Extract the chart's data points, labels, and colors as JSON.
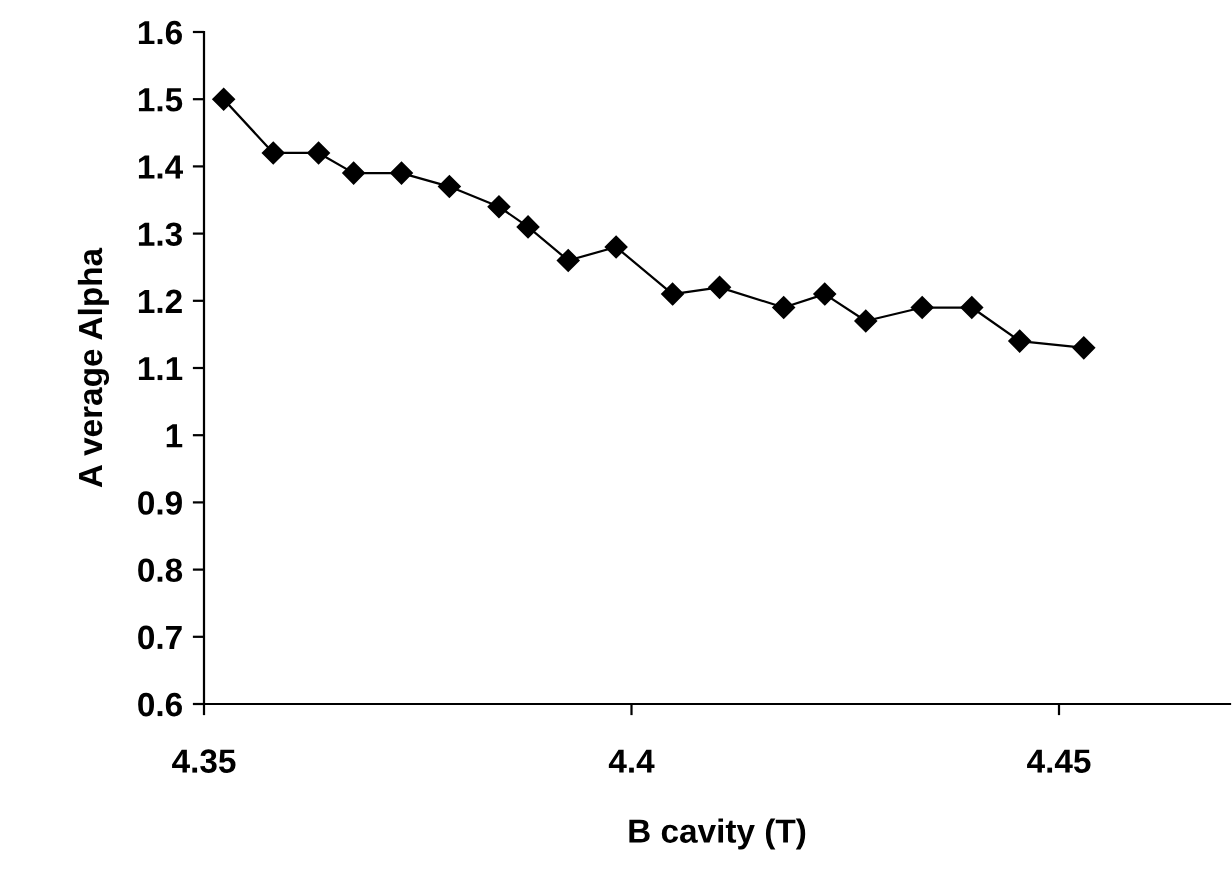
{
  "chart_data": {
    "type": "line",
    "xlabel": "B cavity (T)",
    "ylabel": "A verage Alpha",
    "x": [
      4.3523,
      4.3581,
      4.3634,
      4.3675,
      4.3731,
      4.3787,
      4.3845,
      4.3879,
      4.3926,
      4.3982,
      4.4048,
      4.4103,
      4.4178,
      4.4226,
      4.4274,
      4.434,
      4.4398,
      4.4454,
      4.4529
    ],
    "series": [
      {
        "color": "#000000",
        "values": [
          1.5,
          1.42,
          1.42,
          1.39,
          1.39,
          1.37,
          1.34,
          1.31,
          1.26,
          1.28,
          1.21,
          1.22,
          1.19,
          1.21,
          1.17,
          1.19,
          1.19,
          1.14,
          1.13
        ]
      }
    ],
    "xlim": [
      4.35,
      4.47
    ],
    "xticks": [
      4.35,
      4.4,
      4.45
    ],
    "ylim": [
      0.6,
      1.6
    ],
    "yticks": [
      0.6,
      0.7,
      0.8,
      0.9,
      {
        "value": 1.0,
        "label": "1"
      },
      1.1,
      1.2,
      1.3,
      1.4,
      1.5,
      1.6
    ],
    "grid": false,
    "marker": "diamond",
    "line_style": "solid"
  }
}
